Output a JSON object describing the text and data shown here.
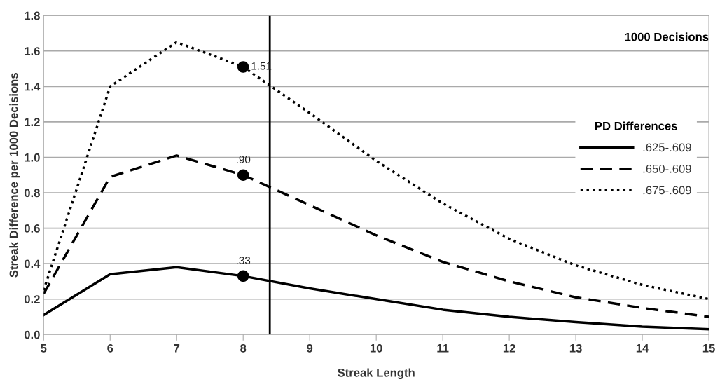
{
  "chart_data": {
    "type": "line",
    "xlabel": "Streak Length",
    "ylabel": "Streak Difference per 1000 Decisions",
    "legend_title": "PD Differences",
    "x": [
      5,
      6,
      7,
      8,
      9,
      10,
      11,
      12,
      13,
      14,
      15
    ],
    "series": [
      {
        "name": ".625-.609",
        "color": "#000000",
        "line_style": "solid",
        "values": [
          0.11,
          0.34,
          0.38,
          0.33,
          0.26,
          0.2,
          0.14,
          0.1,
          0.07,
          0.045,
          0.03
        ],
        "value_labels": [
          null,
          null,
          null,
          ".33",
          null,
          null,
          null,
          null,
          null,
          null,
          null
        ]
      },
      {
        "name": ".650-.609",
        "color": "#000000",
        "line_style": "dashed",
        "values": [
          0.23,
          0.89,
          1.01,
          0.9,
          0.73,
          0.56,
          0.41,
          0.3,
          0.21,
          0.15,
          0.1
        ],
        "value_labels": [
          null,
          null,
          null,
          ".90",
          null,
          null,
          null,
          null,
          null,
          null,
          null
        ]
      },
      {
        "name": ".675-.609",
        "color": "#000000",
        "line_style": "dotted",
        "values": [
          0.25,
          1.4,
          1.65,
          1.51,
          1.25,
          0.98,
          0.74,
          0.54,
          0.39,
          0.28,
          0.2
        ],
        "value_labels": [
          null,
          null,
          null,
          "1.51",
          null,
          null,
          null,
          null,
          null,
          null,
          null
        ]
      },
      {
        "type": "scatter",
        "marker": "circle",
        "color": "#000000",
        "values": [
          null,
          null,
          null,
          0.33,
          null,
          null,
          null,
          null,
          null,
          null,
          null
        ]
      },
      {
        "type": "scatter",
        "marker": "circle",
        "color": "#000000",
        "values": [
          null,
          null,
          null,
          0.9,
          null,
          null,
          null,
          null,
          null,
          null,
          null
        ]
      },
      {
        "type": "scatter",
        "marker": "circle",
        "color": "#000000",
        "values": [
          null,
          null,
          null,
          1.51,
          null,
          null,
          null,
          null,
          null,
          null,
          null
        ]
      }
    ],
    "annotations": [
      "1000 Decisions"
    ],
    "ref_lines": [
      {
        "axis": "x",
        "value": 8.4,
        "color": "#000000"
      }
    ],
    "xlim": [
      5,
      15
    ],
    "xticks": [
      5,
      6,
      7,
      8,
      9,
      10,
      11,
      12,
      13,
      14,
      15
    ],
    "ylim": [
      0,
      1.8
    ],
    "yticks": [
      {
        "value": 0,
        "label": "0.0"
      },
      0.2,
      0.4,
      0.6,
      0.8,
      {
        "value": 1,
        "label": "1.0"
      },
      1.2,
      1.4,
      1.6,
      1.8
    ],
    "grid": "y",
    "legend": "right"
  }
}
